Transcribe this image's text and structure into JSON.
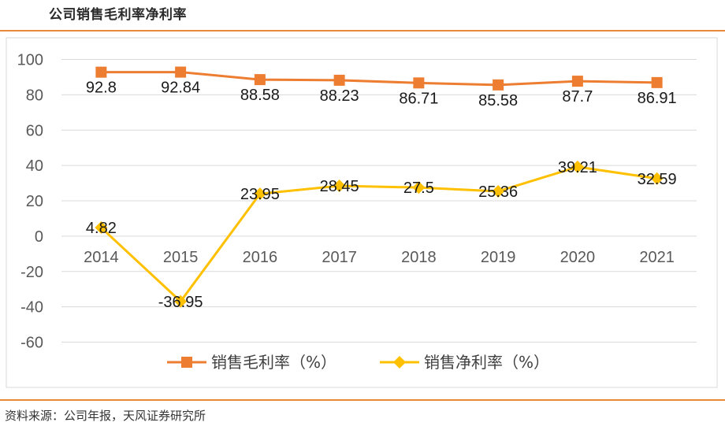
{
  "header": {
    "title": "公司销售毛利率净利率"
  },
  "footer": {
    "source": "资料来源：公司年报，天风证券研究所"
  },
  "colors": {
    "gross": "#ed7d31",
    "net": "#ffc000",
    "grid": "#d9d9d9",
    "rule": "#e8893a"
  },
  "chart_data": {
    "type": "line",
    "title": "公司销售毛利率净利率",
    "categories": [
      "2014",
      "2015",
      "2016",
      "2017",
      "2018",
      "2019",
      "2020",
      "2021"
    ],
    "series": [
      {
        "name": "销售毛利率（%）",
        "marker": "square",
        "values": [
          92.8,
          92.84,
          88.58,
          88.23,
          86.71,
          85.58,
          87.7,
          86.91
        ],
        "labels": [
          "92.8",
          "92.84",
          "88.58",
          "88.23",
          "86.71",
          "85.58",
          "87.7",
          "86.91"
        ]
      },
      {
        "name": "销售净利率（%）",
        "marker": "diamond",
        "values": [
          4.82,
          -36.95,
          23.95,
          28.45,
          27.5,
          25.36,
          39.21,
          32.59
        ],
        "labels": [
          "4.82",
          "-36.95",
          "23.95",
          "28.45",
          "27.5",
          "25.36",
          "39.21",
          "32.59"
        ]
      }
    ],
    "yticks": [
      "100",
      "80",
      "60",
      "40",
      "20",
      "0",
      "-20",
      "-40",
      "-60"
    ],
    "ylim": [
      -60,
      100
    ],
    "grid": true,
    "legend": "bottom"
  }
}
